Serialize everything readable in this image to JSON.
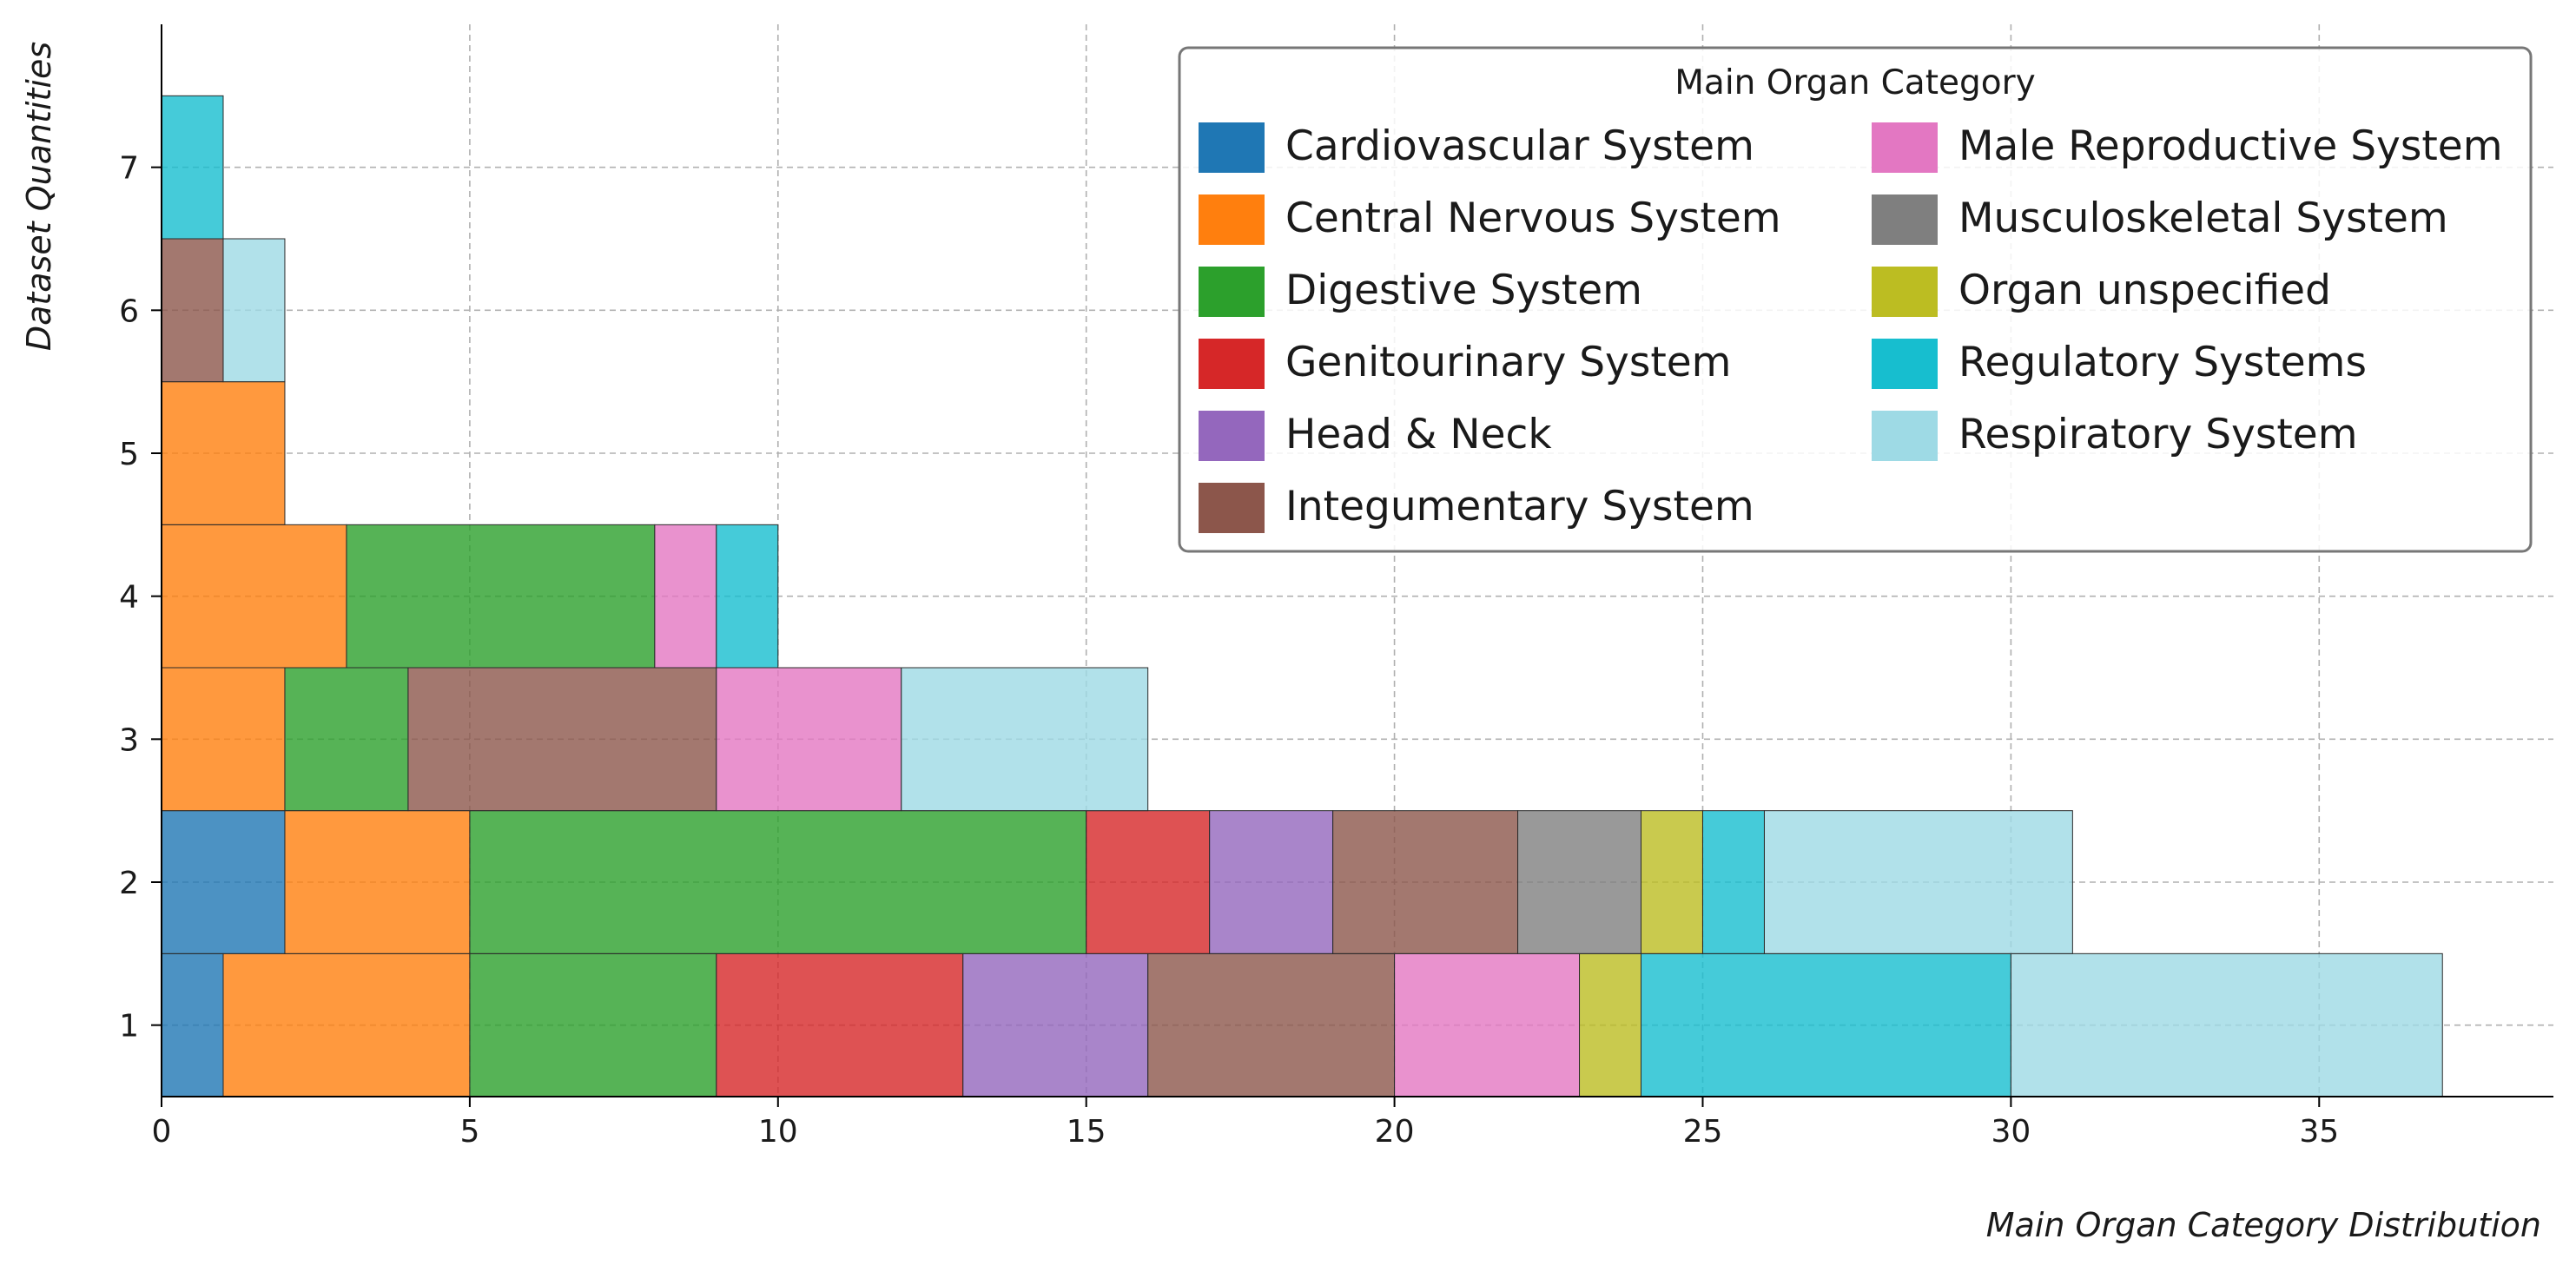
{
  "chart_data": {
    "type": "bar",
    "orientation": "horizontal-stacked",
    "title": "",
    "xlabel": "Main Organ Category Distribution",
    "ylabel": "Dataset Quantities",
    "xlim": [
      0,
      38.8
    ],
    "ylim": [
      0.5,
      8.0
    ],
    "xticks": [
      0,
      5,
      10,
      15,
      20,
      25,
      30,
      35
    ],
    "yticks": [
      1,
      2,
      3,
      4,
      5,
      6,
      7
    ],
    "grid": true,
    "legend": {
      "title": "Main Organ Category",
      "placement": "top-right",
      "columns": 2
    },
    "categories": [
      {
        "name": "Cardiovascular System",
        "color": "#1f77b4"
      },
      {
        "name": "Central Nervous System",
        "color": "#ff7f0e"
      },
      {
        "name": "Digestive System",
        "color": "#2ca02c"
      },
      {
        "name": "Genitourinary System",
        "color": "#d62728"
      },
      {
        "name": "Head & Neck",
        "color": "#9467bd"
      },
      {
        "name": "Integumentary System",
        "color": "#8c564b"
      },
      {
        "name": "Male Reproductive System",
        "color": "#e377c2"
      },
      {
        "name": "Musculoskeletal System",
        "color": "#7f7f7f"
      },
      {
        "name": "Organ unspecified",
        "color": "#bcbd22"
      },
      {
        "name": "Regulatory Systems",
        "color": "#17becf"
      },
      {
        "name": "Respiratory System",
        "color": "#9edae5"
      }
    ],
    "rows": [
      {
        "y": 1,
        "segments": [
          {
            "category": "Cardiovascular System",
            "value": 1
          },
          {
            "category": "Central Nervous System",
            "value": 4
          },
          {
            "category": "Digestive System",
            "value": 4
          },
          {
            "category": "Genitourinary System",
            "value": 4
          },
          {
            "category": "Head & Neck",
            "value": 3
          },
          {
            "category": "Integumentary System",
            "value": 4
          },
          {
            "category": "Male Reproductive System",
            "value": 3
          },
          {
            "category": "Organ unspecified",
            "value": 1
          },
          {
            "category": "Regulatory Systems",
            "value": 6
          },
          {
            "category": "Respiratory System",
            "value": 7
          }
        ]
      },
      {
        "y": 2,
        "segments": [
          {
            "category": "Cardiovascular System",
            "value": 2
          },
          {
            "category": "Central Nervous System",
            "value": 3
          },
          {
            "category": "Digestive System",
            "value": 10
          },
          {
            "category": "Genitourinary System",
            "value": 2
          },
          {
            "category": "Head & Neck",
            "value": 2
          },
          {
            "category": "Integumentary System",
            "value": 3
          },
          {
            "category": "Musculoskeletal System",
            "value": 2
          },
          {
            "category": "Organ unspecified",
            "value": 1
          },
          {
            "category": "Regulatory Systems",
            "value": 1
          },
          {
            "category": "Respiratory System",
            "value": 5
          }
        ]
      },
      {
        "y": 3,
        "segments": [
          {
            "category": "Central Nervous System",
            "value": 2
          },
          {
            "category": "Digestive System",
            "value": 2
          },
          {
            "category": "Integumentary System",
            "value": 5
          },
          {
            "category": "Male Reproductive System",
            "value": 3
          },
          {
            "category": "Respiratory System",
            "value": 4
          }
        ]
      },
      {
        "y": 4,
        "segments": [
          {
            "category": "Central Nervous System",
            "value": 3
          },
          {
            "category": "Digestive System",
            "value": 5
          },
          {
            "category": "Male Reproductive System",
            "value": 1
          },
          {
            "category": "Regulatory Systems",
            "value": 1
          }
        ]
      },
      {
        "y": 5,
        "segments": [
          {
            "category": "Central Nervous System",
            "value": 2
          }
        ]
      },
      {
        "y": 6,
        "segments": [
          {
            "category": "Integumentary System",
            "value": 1
          },
          {
            "category": "Respiratory System",
            "value": 1
          }
        ]
      },
      {
        "y": 7,
        "segments": [
          {
            "category": "Regulatory Systems",
            "value": 1
          }
        ]
      }
    ]
  }
}
